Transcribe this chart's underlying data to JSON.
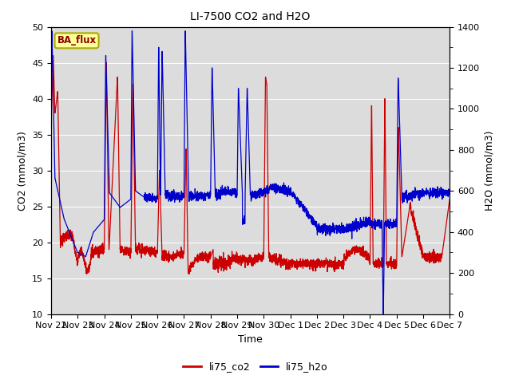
{
  "title": "LI-7500 CO2 and H2O",
  "xlabel": "Time",
  "ylabel_left": "CO2 (mmol/m3)",
  "ylabel_right": "H2O (mmol/m3)",
  "ylim_left": [
    10,
    50
  ],
  "ylim_right": [
    0,
    1400
  ],
  "yticks_left": [
    10,
    15,
    20,
    25,
    30,
    35,
    40,
    45,
    50
  ],
  "yticks_right": [
    0,
    200,
    400,
    600,
    800,
    1000,
    1200,
    1400
  ],
  "color_co2": "#cc0000",
  "color_h2o": "#0000cc",
  "bg_color": "#dcdcdc",
  "annotation_text": "BA_flux",
  "annotation_bg": "#ffff99",
  "annotation_border": "#aaaa00",
  "annotation_text_color": "#8b0000",
  "legend_co2": "li75_co2",
  "legend_h2o": "li75_h2o",
  "xtick_labels": [
    "Nov 22",
    "Nov 23",
    "Nov 24",
    "Nov 25",
    "Nov 26",
    "Nov 27",
    "Nov 28",
    "Nov 29",
    "Nov 30",
    "Dec 1",
    "Dec 2",
    "Dec 3",
    "Dec 4",
    "Dec 5",
    "Dec 6",
    "Dec 7"
  ],
  "n_days": 15,
  "figsize": [
    6.4,
    4.8
  ],
  "dpi": 100
}
